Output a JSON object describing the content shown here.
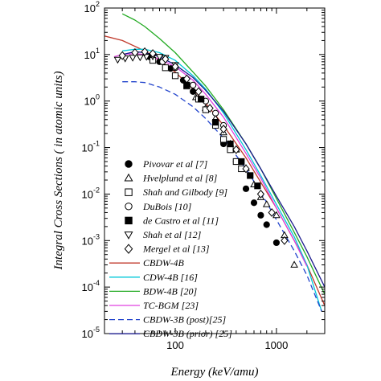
{
  "chart_data": {
    "type": "scatter",
    "xlabel": "Energy (keV/amu)",
    "ylabel": "Integral Cross Sections ( in atomic units)",
    "xscale": "log",
    "yscale": "log",
    "xlim": [
      20,
      3000
    ],
    "ylim": [
      1e-05,
      100
    ],
    "x_tick_labels": [
      "100",
      "1000"
    ],
    "y_tick_labels": [
      "10",
      "10",
      "10",
      "10",
      "10",
      "10",
      "10",
      "10"
    ],
    "y_tick_exponents": [
      "2",
      "1",
      "0",
      "-1",
      "-2",
      "-3",
      "-4",
      "-5"
    ],
    "legend_position": "center-left",
    "grid": false,
    "series": [
      {
        "name": "Pivovar et al [7]",
        "kind": "markers",
        "marker": "filled-circle",
        "x": [
          55,
          70,
          90,
          120,
          150,
          200,
          250,
          300,
          400,
          500,
          600,
          700,
          800,
          1000
        ],
        "y": [
          9,
          7,
          5,
          2.8,
          1.6,
          0.65,
          0.3,
          0.12,
          0.05,
          0.013,
          0.0065,
          0.0035,
          0.0022,
          0.0009
        ]
      },
      {
        "name": "Hvelplund et al [8]",
        "kind": "markers",
        "marker": "open-triangle-up",
        "x": [
          160,
          200,
          250,
          300,
          350,
          400,
          500,
          600,
          700,
          800,
          1000,
          1200,
          1500
        ],
        "y": [
          1.2,
          0.7,
          0.42,
          0.21,
          0.12,
          0.09,
          0.036,
          0.016,
          0.0085,
          0.006,
          0.0035,
          0.0013,
          0.0003
        ]
      },
      {
        "name": "Shah and Gilbody [9]",
        "kind": "markers",
        "marker": "open-square",
        "x": [
          60,
          80,
          100,
          130,
          170,
          200,
          250,
          300,
          350,
          400,
          450
        ],
        "y": [
          7.5,
          5.2,
          3.5,
          2.1,
          1.1,
          0.65,
          0.3,
          0.15,
          0.09,
          0.05,
          0.035
        ]
      },
      {
        "name": "DuBois [10]",
        "kind": "markers",
        "marker": "open-circle",
        "x": [
          75,
          100,
          150,
          200,
          250,
          300
        ],
        "y": [
          7,
          5.2,
          2.2,
          1.0,
          0.55,
          0.3
        ]
      },
      {
        "name": "de Castro et al [11]",
        "kind": "markers",
        "marker": "filled-square",
        "x": [
          130,
          180,
          250,
          350,
          450,
          550,
          650
        ],
        "y": [
          2.2,
          1.1,
          0.35,
          0.12,
          0.05,
          0.025,
          0.015
        ]
      },
      {
        "name": "Shah et al [12]",
        "kind": "markers",
        "marker": "open-triangle-down",
        "x": [
          27,
          32,
          38,
          45,
          52,
          60,
          70,
          80,
          100
        ],
        "y": [
          7.8,
          8.3,
          8.6,
          8.8,
          9,
          9.2,
          9,
          8.5,
          6
        ]
      },
      {
        "name": "Mergel et al [13]",
        "kind": "markers",
        "marker": "open-diamond",
        "x": [
          30,
          40,
          50,
          60,
          80,
          100,
          130,
          170,
          220,
          300,
          400,
          500,
          700,
          900,
          1200
        ],
        "y": [
          9.5,
          11,
          11.5,
          10.5,
          8,
          5.5,
          3,
          1.6,
          0.7,
          0.25,
          0.09,
          0.035,
          0.01,
          0.004,
          0.001
        ]
      },
      {
        "name": "CBDW-4B",
        "kind": "line",
        "color": "#c0392b",
        "dash": "solid",
        "x": [
          20,
          30,
          50,
          70,
          100,
          150,
          200,
          300,
          500,
          700,
          1000,
          1500,
          2000,
          3000
        ],
        "y": [
          25,
          20,
          12,
          7.5,
          4.2,
          1.8,
          0.9,
          0.3,
          0.06,
          0.018,
          0.005,
          0.001,
          0.0003,
          4e-05
        ]
      },
      {
        "name": "CDW-4B [16]",
        "kind": "line",
        "color": "#00c8d8",
        "dash": "solid",
        "x": [
          30,
          40,
          50,
          70,
          100,
          150,
          200,
          300,
          500,
          700,
          1000,
          1500,
          2000,
          2800
        ],
        "y": [
          12,
          13,
          13,
          11,
          7.5,
          3.5,
          1.8,
          0.55,
          0.09,
          0.025,
          0.006,
          0.0012,
          0.0003,
          3e-05
        ]
      },
      {
        "name": "BDW-4B [20]",
        "kind": "line",
        "color": "#22aa22",
        "dash": "solid",
        "x": [
          30,
          40,
          50,
          70,
          100,
          150,
          200,
          300,
          500,
          700,
          1000,
          1500,
          2000,
          3000
        ],
        "y": [
          75,
          55,
          40,
          22,
          11,
          4.2,
          2.1,
          0.65,
          0.12,
          0.035,
          0.008,
          0.0015,
          0.00045,
          7e-05
        ]
      },
      {
        "name": "TC-BGM [23]",
        "kind": "line",
        "color": "#e040e0",
        "dash": "solid",
        "x": [
          25,
          30,
          40,
          50,
          70,
          100,
          150,
          200,
          300,
          500,
          700,
          1000,
          1500,
          2000
        ],
        "y": [
          9,
          10,
          10.5,
          10,
          8,
          5.5,
          2.8,
          1.4,
          0.45,
          0.075,
          0.022,
          0.005,
          0.001,
          0.00028
        ]
      },
      {
        "name": "CBDW-3B (post)[25]",
        "kind": "line",
        "color": "#2244cc",
        "dash": "dashed",
        "x": [
          30,
          40,
          50,
          70,
          100,
          150,
          200,
          300,
          500,
          700,
          1000,
          1500,
          2000,
          2800
        ],
        "y": [
          2.6,
          2.6,
          2.5,
          2.0,
          1.4,
          0.75,
          0.42,
          0.16,
          0.035,
          0.011,
          0.0028,
          0.0006,
          0.00018,
          3e-05
        ]
      },
      {
        "name": "CBDW-3B (prior) [25]",
        "kind": "line",
        "color": "#1a1a8c",
        "dash": "solid",
        "x": [
          30,
          40,
          50,
          70,
          100,
          150,
          200,
          300,
          500,
          700,
          1000,
          1500,
          2000,
          3000
        ],
        "y": [
          10,
          11.5,
          11,
          9,
          6,
          3.2,
          1.7,
          0.6,
          0.12,
          0.035,
          0.009,
          0.002,
          0.0006,
          0.0001
        ]
      }
    ]
  }
}
